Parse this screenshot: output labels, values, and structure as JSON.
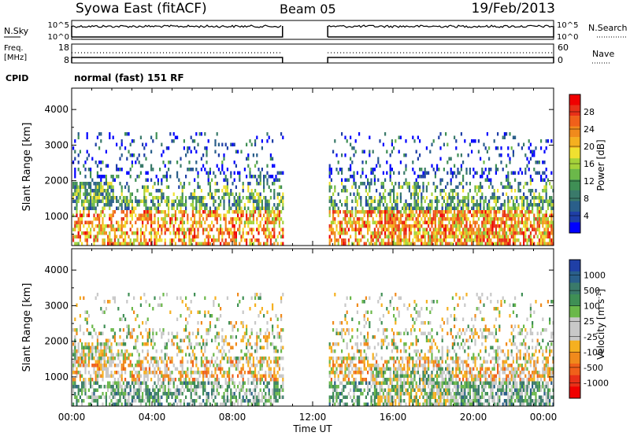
{
  "header": {
    "title": "Syowa East (fitACF)",
    "beam": "Beam 05",
    "date": "19/Feb/2013"
  },
  "strips": {
    "noise": {
      "left_label": "N.Sky",
      "right_label": "N.Search",
      "left_ticks": [
        "10^5",
        "10^0"
      ],
      "right_ticks": [
        "10^5",
        "10^0"
      ]
    },
    "freq": {
      "left_label_1": "Freq.",
      "left_label_2": "[MHz]",
      "right_label": "Nave",
      "left_ticks": [
        "18",
        "8"
      ],
      "right_ticks": [
        "60",
        "0"
      ]
    },
    "cpid": {
      "label": "CPID",
      "value": "normal (fast) 151 RF"
    }
  },
  "chart_data": [
    {
      "type": "heatmap",
      "name": "power",
      "ylabel": "Slant Range [km]",
      "xlabel": "Time UT",
      "xlim": [
        "00:00",
        "24:00"
      ],
      "ylim": [
        180,
        4600
      ],
      "y_ticks": [
        "1000",
        "2000",
        "3000",
        "4000"
      ],
      "x_ticks": [
        "00:00",
        "04:00",
        "08:00",
        "12:00",
        "16:00",
        "20:00",
        "00:00"
      ],
      "data_gap": [
        "10:30",
        "12:45"
      ],
      "colorbar": {
        "label": "Power [dB]",
        "ticks": [
          "4",
          "8",
          "12",
          "16",
          "20",
          "24",
          "28"
        ],
        "colors": [
          "#0000ff",
          "#1f3fa6",
          "#2a5f8a",
          "#3a7a6a",
          "#3f8f55",
          "#6bb84a",
          "#a5d23a",
          "#f0e030",
          "#f5b020",
          "#f08a1c",
          "#f0601a",
          "#e83018",
          "#f00000"
        ]
      }
    },
    {
      "type": "heatmap",
      "name": "velocity",
      "ylabel": "Slant Range [km]",
      "xlabel": "Time UT",
      "xlim": [
        "00:00",
        "24:00"
      ],
      "ylim": [
        180,
        4600
      ],
      "y_ticks": [
        "1000",
        "2000",
        "3000",
        "4000"
      ],
      "x_ticks": [
        "00:00",
        "04:00",
        "08:00",
        "12:00",
        "16:00",
        "20:00",
        "00:00"
      ],
      "data_gap": [
        "10:30",
        "12:45"
      ],
      "colorbar": {
        "label": "Velocity [m s",
        "label_sup": "-1",
        "label_end": "]",
        "ticks": [
          "1000",
          "500",
          "100",
          "25",
          "-25",
          "-100",
          "-500",
          "-1000"
        ],
        "colors": [
          "#1f3fa6",
          "#2a5f8a",
          "#3a7a6a",
          "#3f8f55",
          "#6bb84a",
          "#c8c8c8",
          "#c8c8c8",
          "#f5b020",
          "#f08a1c",
          "#f0601a",
          "#e83018",
          "#f00000"
        ]
      }
    }
  ]
}
